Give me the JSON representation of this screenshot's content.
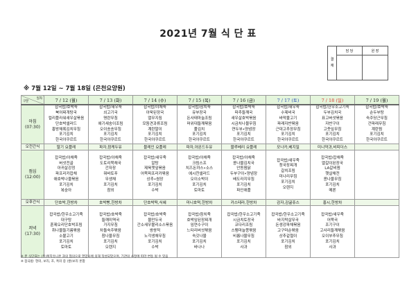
{
  "title": "2021년 7월 식 단 표",
  "approval": {
    "side_label": "결\n재",
    "columns": [
      "담 당",
      "원 장"
    ]
  },
  "subtitle": "※ 7월 12일 ~ 7월 18일 (은천요양원)",
  "corner": {
    "top": "일자",
    "bottom": "구분"
  },
  "days": [
    {
      "label": "7 / 12 (월)",
      "color": "#222222"
    },
    {
      "label": "7 / 13 (화)",
      "color": "#222222"
    },
    {
      "label": "7 / 14 (수)",
      "color": "#222222"
    },
    {
      "label": "7 / 15 (목)",
      "color": "#222222"
    },
    {
      "label": "7 / 16 (금)",
      "color": "#222222"
    },
    {
      "label": "7 / 17 (토)",
      "color": "#2a4fb5"
    },
    {
      "label": "7 / 18 (일)",
      "color": "#d9342b"
    },
    {
      "label": "7 / 19 (월)",
      "color": "#222222"
    }
  ],
  "meals": [
    {
      "type": "meal",
      "label": "아침\n(07:30)",
      "cells": [
        [
          "잡곡밥/호박죽",
          "북어찌개탕국",
          "컬리플라워새우살볶음",
          "단호박샐러드",
          "홍방채록김치무침",
          "포기김치",
          "한국야쿠르트"
        ],
        [
          "잡곡밥/새우죽",
          "쇠고기국",
          "명란무침",
          "애기새송이조림",
          "오이송송무침",
          "포기김치",
          "한국야쿠르트"
        ],
        [
          "잡곡밥/야채죽",
          "아욱된장국",
          "열무지짐",
          "모둠견과류조림",
          "계란말이",
          "포기김치",
          "한국야쿠르트"
        ],
        [
          "잡곡밥/참치죽",
          "유부장국",
          "돈사태마늘조림",
          "머위대들깨볶음",
          "풀김치",
          "포기김치",
          "한국야쿠르트"
        ],
        [
          "잡곡밥/호박죽",
          "파추들깨국",
          "새우살호박볶음",
          "시금치나물무침",
          "연두부•양념장",
          "포기김치",
          "한국야쿠르트"
        ],
        [
          "잡곡밥/새우죽",
          "수제비국",
          "바막불고기",
          "파래자반볶음",
          "근대고추장무침",
          "포기김치",
          "한국야쿠르트"
        ],
        [
          "잡곡밥/한우소고기죽",
          "두부김치국",
          "표고버섯볶음",
          "자반구이",
          "고춧잎무침",
          "포기김치",
          "한국야쿠르트"
        ],
        [
          "잡곡밥/호박죽",
          "순두부탕",
          "숙주당근무침",
          "건파래무침",
          "계란찜",
          "포기김치",
          "한국야쿠르트"
        ]
      ]
    },
    {
      "type": "snack",
      "label": "오전간식",
      "cells": [
        "딸기 요플레",
        "파자,참케두유",
        "블레인 요플레",
        "파자,아몬드두유",
        "블루베리 요플레",
        "모나카,베지밀",
        "미니약과,비피더스",
        ""
      ]
    },
    {
      "type": "meal",
      "label": "점심\n(12:00)",
      "cells": [
        [
          "잡곡밥/야채죽",
          "버섯전골",
          "아귀살강정",
          "파프리카잡채",
          "애호박나물볶음",
          "포기김치",
          "복숭아"
        ],
        [
          "잡곡밥/야채죽",
          "도토리묵채국",
          "간자장",
          "뭐바토푸",
          "무생채",
          "포기김치",
          "참외"
        ],
        [
          "잡곡밥/새우죽",
          "알탕",
          "제육깻잎볶음",
          "어묵파프리카볶음",
          "상추•쌈장",
          "포기김치",
          "수박"
        ],
        [
          "잡곡밥/야채죽",
          "크림스프",
          "치즈돈까스•소스",
          "에시찬샐러드",
          "오이소박이",
          "포기김치",
          "토마토"
        ],
        [
          "잡곡밥/야채죽",
          "콩나물김치국",
          "안동찜닭",
          "두부구이•양념장",
          "배도라지무침",
          "포기김치",
          "파인애플"
        ],
        [
          "잡곡밥/새우죽",
          "청국장찌개",
          "갈치조림",
          "미나리무침",
          "포기김치",
          "오렌지"
        ],
        [
          "잡곡밥/잡채죽",
          "열갈이된장국",
          "LA갈비찜",
          "햇살채전",
          "콩나물무침",
          "포기김치",
          "메론"
        ],
        []
      ]
    },
    {
      "type": "snack",
      "label": "오후간식",
      "cells": [
        "단호박,한방차",
        "호박빵,한방차",
        "단호박떡,식혜",
        "미니호떡,한방차",
        "카스테라,한방차",
        "감자,감귤쥬스",
        "홍시,한방차",
        ""
      ]
    },
    {
      "type": "meal",
      "label": "저녁\n(17:30)",
      "cells": [
        [
          "잡곡밥/한우소고기죽",
          "대구탕",
          "훈제오리단호박조림",
          "취나물들기름볶음",
          "소불고기",
          "포기김치",
          "토마토"
        ],
        [
          "잡곡밥/호박죽",
          "들깨미역국",
          "가지무침",
          "차돌숙주볶음",
          "참나물무침",
          "포기김치",
          "오렌지"
        ],
        [
          "잡곡밥/호박죽",
          "물만두국",
          "간소새우볼리소스볶음",
          "쌍쌍적",
          "노각생채무침",
          "포기김치",
          "수박"
        ],
        [
          "잡곡밥/참치죽",
          "호박잎된장찌개",
          "임연수구이",
          "느타리버섯볶음",
          "숙갓나물",
          "포기김치",
          "바나나"
        ],
        [
          "잡곡밥/한우소고기죽",
          "시금치토장국",
          "코다리조림",
          "스팸마늘쫑볶음",
          "비름나물무침",
          "포기김치",
          "사과"
        ],
        [
          "잡곡밥/한우소고기죽",
          "바지락살무국",
          "돈생강파채볶음",
          "고구마순볶음",
          "상추겉절이",
          "포기김치",
          "참외"
        ],
        [
          "잡곡밥/새우죽",
          "어묵국",
          "조기구이",
          "고사리들깨볶음",
          "오이부추무침",
          "포기김치",
          "사과"
        ],
        []
      ]
    }
  ],
  "notes": [
    "※ 본 식단표는 (주)복지유니온 과의 협의으로 영양사에 의해 작성되었으며, 기관의 사정에 따라 변동 될 수 있음",
    "※ 잡곡밥: 현미, 보리, 조, 흑미 중 (쌀)보리 혼합"
  ],
  "colors": {
    "header_bg": "#e4f5dc",
    "snack_bg": "#eef8e8",
    "saturday": "#2a4fb5",
    "sunday": "#d9342b"
  }
}
